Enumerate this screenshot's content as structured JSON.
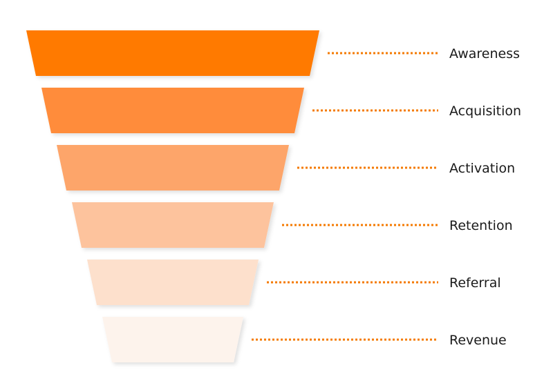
{
  "funnel": {
    "accent_color": "#f47a00",
    "stages": [
      {
        "label": "Awareness",
        "color": "#ff7a00"
      },
      {
        "label": "Acquisition",
        "color": "#ff8c3a"
      },
      {
        "label": "Activation",
        "color": "#fda56b"
      },
      {
        "label": "Retention",
        "color": "#fdc39d"
      },
      {
        "label": "Referral",
        "color": "#fde0cc"
      },
      {
        "label": "Revenue",
        "color": "#fdf3ec"
      }
    ]
  }
}
